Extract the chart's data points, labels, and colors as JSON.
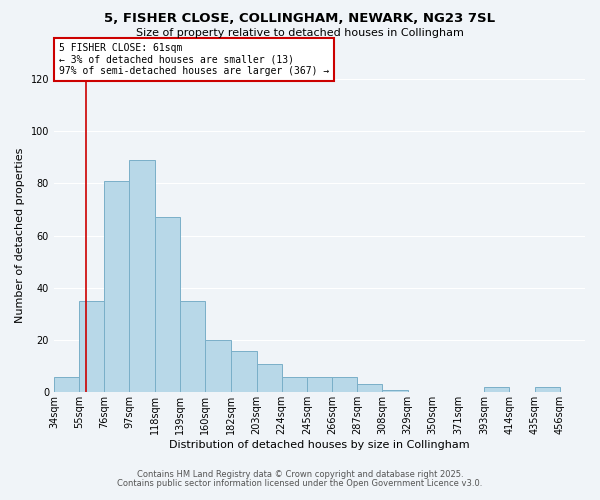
{
  "title_line1": "5, FISHER CLOSE, COLLINGHAM, NEWARK, NG23 7SL",
  "title_line2": "Size of property relative to detached houses in Collingham",
  "xlabel": "Distribution of detached houses by size in Collingham",
  "ylabel": "Number of detached properties",
  "bar_labels": [
    "34sqm",
    "55sqm",
    "76sqm",
    "97sqm",
    "118sqm",
    "139sqm",
    "160sqm",
    "182sqm",
    "203sqm",
    "224sqm",
    "245sqm",
    "266sqm",
    "287sqm",
    "308sqm",
    "329sqm",
    "350sqm",
    "371sqm",
    "393sqm",
    "414sqm",
    "435sqm",
    "456sqm"
  ],
  "bar_values": [
    6,
    35,
    81,
    89,
    67,
    35,
    20,
    16,
    11,
    6,
    6,
    6,
    3,
    1,
    0,
    0,
    0,
    2,
    0,
    2,
    0
  ],
  "bar_color": "#b8d8e8",
  "bar_edge_color": "#7aafc8",
  "ylim": [
    0,
    120
  ],
  "yticks": [
    0,
    20,
    40,
    60,
    80,
    100,
    120
  ],
  "property_line_x": 61,
  "bin_edges": [
    34,
    55,
    76,
    97,
    118,
    139,
    160,
    182,
    203,
    224,
    245,
    266,
    287,
    308,
    329,
    350,
    371,
    393,
    414,
    435,
    456,
    477
  ],
  "annotation_title": "5 FISHER CLOSE: 61sqm",
  "annotation_line1": "← 3% of detached houses are smaller (13)",
  "annotation_line2": "97% of semi-detached houses are larger (367) →",
  "annotation_box_color": "#ffffff",
  "annotation_box_edge_color": "#cc0000",
  "red_line_color": "#cc0000",
  "footer_line1": "Contains HM Land Registry data © Crown copyright and database right 2025.",
  "footer_line2": "Contains public sector information licensed under the Open Government Licence v3.0.",
  "background_color": "#f0f4f8",
  "grid_color": "#ffffff",
  "title1_fontsize": 9.5,
  "title2_fontsize": 8,
  "ylabel_fontsize": 8,
  "xlabel_fontsize": 8,
  "tick_fontsize": 7,
  "annotation_fontsize": 7,
  "footer_fontsize": 6
}
